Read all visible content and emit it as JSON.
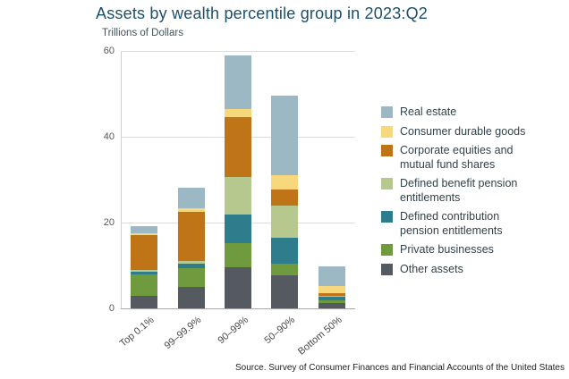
{
  "title": "Assets by wealth percentile group in 2023:Q2",
  "subtitle": "Trillions of Dollars",
  "source": "Source. Survey of Consumer Finances and Financial Accounts of the United States",
  "chart_data": {
    "type": "bar",
    "stacked": true,
    "title": "Assets by wealth percentile group in 2023:Q2",
    "ylabel": "Trillions of Dollars",
    "xlabel": "",
    "ylim": [
      0,
      60
    ],
    "yticks": [
      0,
      20,
      40,
      60
    ],
    "grid": true,
    "legend_position": "right",
    "categories": [
      "Top 0.1%",
      "99–99.9%",
      "90–99%",
      "50–90%",
      "Bottom 50%"
    ],
    "series": [
      {
        "name": "Real estate",
        "color": "#9bb8c4",
        "values": [
          1.6,
          4.8,
          12.5,
          18.5,
          4.5
        ]
      },
      {
        "name": "Consumer durable goods",
        "color": "#f7d87c",
        "values": [
          0.5,
          0.8,
          1.9,
          3.3,
          1.8
        ]
      },
      {
        "name": "Corporate equities and mutual fund shares",
        "color": "#c07418",
        "values": [
          8.2,
          11.5,
          14.0,
          3.8,
          0.6
        ]
      },
      {
        "name": "Defined benefit pension entitlements",
        "color": "#b6c88d",
        "values": [
          0.3,
          0.7,
          8.7,
          7.5,
          0.2
        ]
      },
      {
        "name": "Defined contribution pension entitlements",
        "color": "#2e7d8c",
        "values": [
          0.6,
          1.0,
          6.7,
          6.0,
          0.9
        ]
      },
      {
        "name": "Private businesses",
        "color": "#6f9a3d",
        "values": [
          5.0,
          4.4,
          5.6,
          2.7,
          0.5
        ]
      },
      {
        "name": "Other assets",
        "color": "#545a60",
        "values": [
          3.0,
          5.0,
          9.6,
          7.7,
          1.3
        ]
      }
    ]
  }
}
